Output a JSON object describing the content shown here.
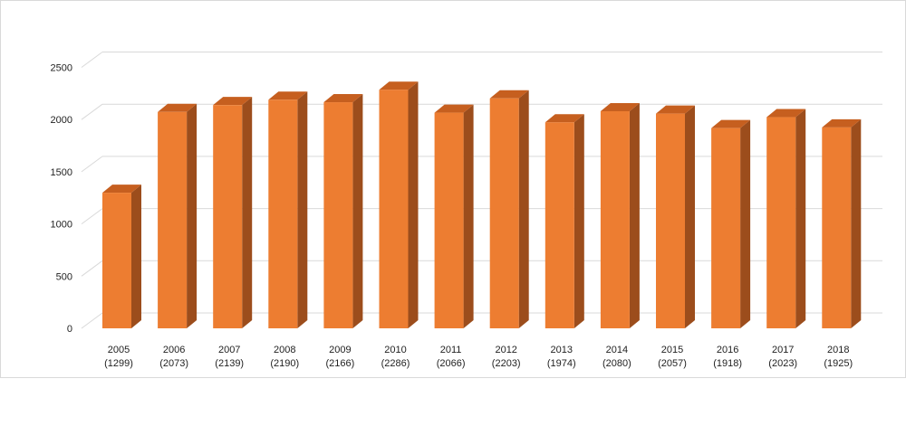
{
  "chart_data": {
    "type": "bar",
    "title": "",
    "xlabel": "",
    "ylabel": "",
    "ylim": [
      0,
      2500
    ],
    "yticks": [
      0,
      500,
      1000,
      1500,
      2000,
      2500
    ],
    "grid": true,
    "legend": "none",
    "categories": [
      "2005",
      "2006",
      "2007",
      "2008",
      "2009",
      "2010",
      "2011",
      "2012",
      "2013",
      "2014",
      "2015",
      "2016",
      "2017",
      "2018"
    ],
    "category_labels": [
      "(1299)",
      "(2073)",
      "(2139)",
      "(2190)",
      "(2166)",
      "(2286)",
      "(2066)",
      "(2203)",
      "(1974)",
      "(2080)",
      "(2057)",
      "(1918)",
      "(2023)",
      "(1925)"
    ],
    "values": [
      1299,
      2073,
      2139,
      2190,
      2166,
      2286,
      2066,
      2203,
      1974,
      2080,
      2057,
      1918,
      2023,
      1925
    ],
    "colors": {
      "front": "#ed7d31",
      "side": "#9c4d1c",
      "top": "#c65f1f",
      "grid": "#d9d9d9"
    }
  }
}
